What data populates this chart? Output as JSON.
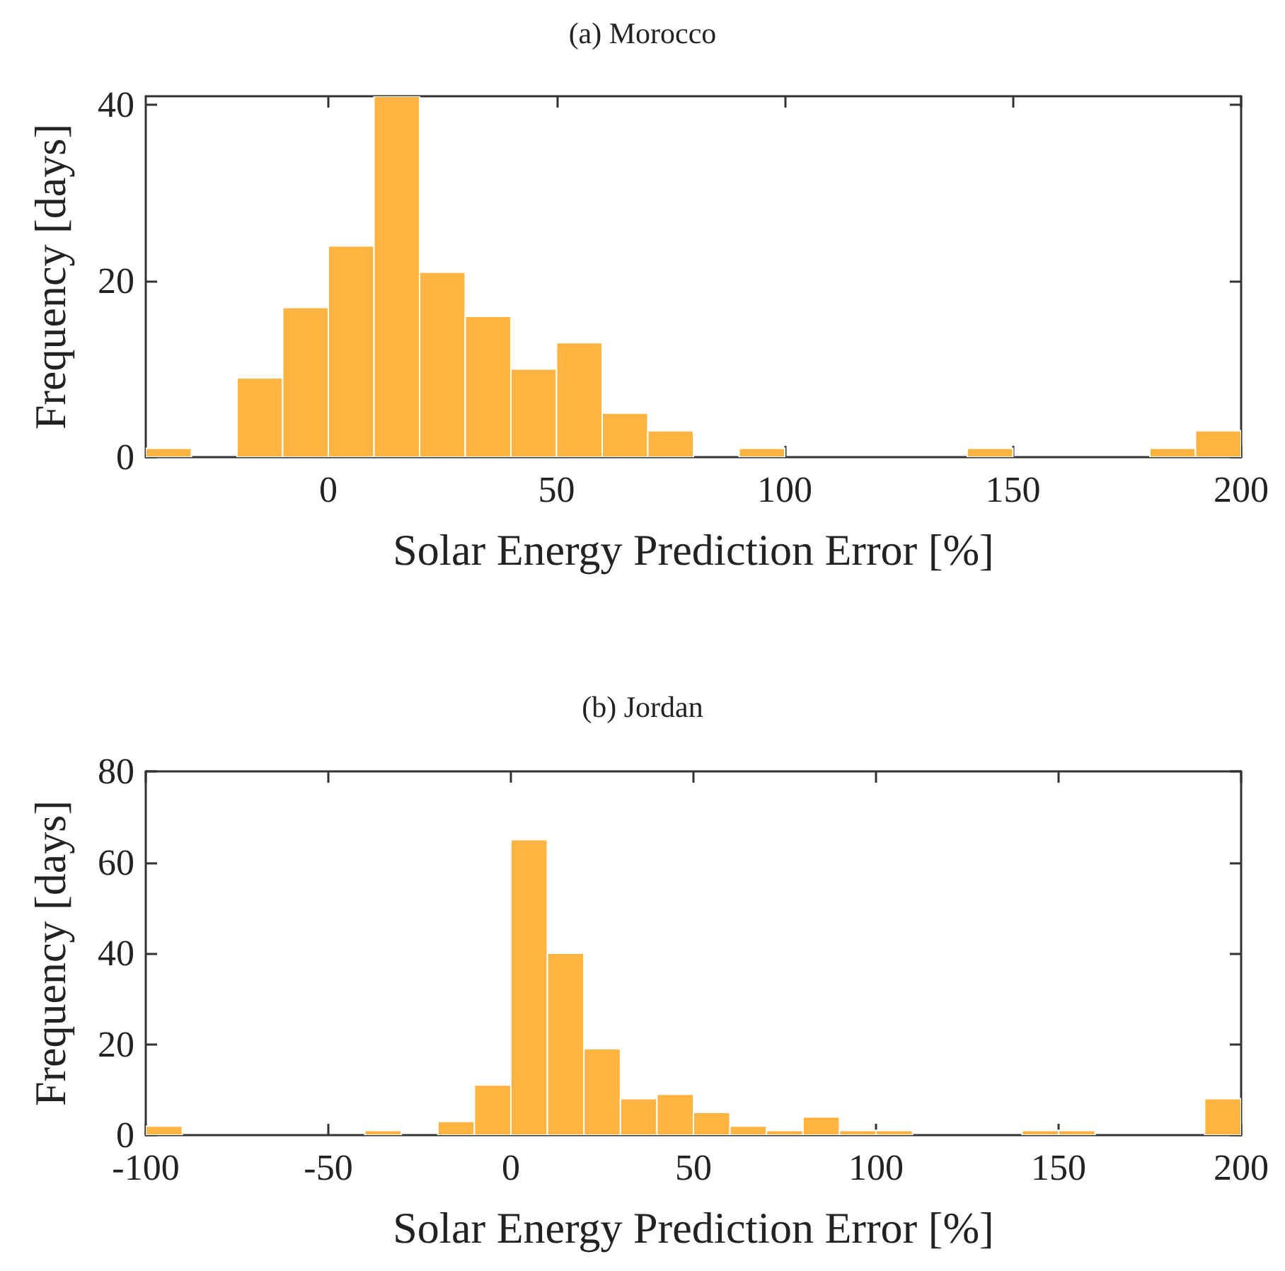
{
  "chart_data": [
    {
      "type": "histogram",
      "title": "(a) Morocco",
      "xlabel": "Solar Energy Prediction Error [%]",
      "ylabel": "Frequency [days]",
      "color": "#ffb340",
      "bins": [
        -40,
        -30,
        -20,
        -10,
        0,
        10,
        20,
        30,
        40,
        50,
        60,
        70,
        80,
        90,
        100,
        110,
        120,
        130,
        140,
        150,
        160,
        170,
        180,
        190,
        200
      ],
      "values": [
        1,
        0,
        9,
        17,
        24,
        41,
        21,
        16,
        10,
        13,
        5,
        3,
        0,
        1,
        0,
        0,
        0,
        0,
        1,
        0,
        0,
        0,
        1,
        3
      ],
      "xlim": [
        -40,
        200
      ],
      "ylim": [
        0,
        41
      ],
      "xticks": [
        0,
        50,
        100,
        150,
        200
      ],
      "yticks": [
        0,
        20,
        40
      ]
    },
    {
      "type": "histogram",
      "title": "(b) Jordan",
      "xlabel": "Solar Energy Prediction Error [%]",
      "ylabel": "Frequency [days]",
      "color": "#ffb340",
      "bins": [
        -100,
        -90,
        -80,
        -70,
        -60,
        -50,
        -40,
        -30,
        -20,
        -10,
        0,
        10,
        20,
        30,
        40,
        50,
        60,
        70,
        80,
        90,
        100,
        110,
        120,
        130,
        140,
        150,
        160,
        170,
        180,
        190,
        200
      ],
      "values": [
        2,
        0,
        0,
        0,
        0,
        0,
        1,
        0,
        3,
        11,
        65,
        40,
        19,
        8,
        9,
        5,
        2,
        1,
        4,
        1,
        1,
        0,
        0,
        0,
        1,
        1,
        0,
        0,
        0,
        8
      ],
      "xlim": [
        -100,
        200
      ],
      "ylim": [
        0,
        80
      ],
      "xticks": [
        -100,
        -50,
        0,
        50,
        100,
        150,
        200
      ],
      "yticks": [
        0,
        20,
        40,
        60,
        80
      ]
    }
  ]
}
